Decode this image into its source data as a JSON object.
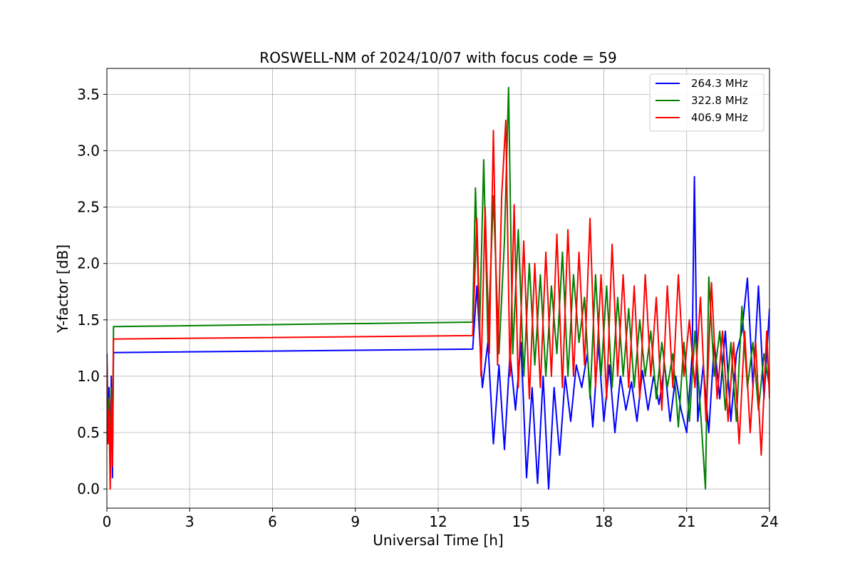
{
  "chart_data": {
    "type": "line",
    "title": "ROSWELL-NM of 2024/10/07 with focus code = 59",
    "xlabel": "Universal Time [h]",
    "ylabel": "Y-factor [dB]",
    "xlim": [
      0,
      24
    ],
    "ylim": [
      -0.17,
      3.73
    ],
    "xticks": [
      0,
      3,
      6,
      9,
      12,
      15,
      18,
      21,
      24
    ],
    "yticks": [
      0.0,
      0.5,
      1.0,
      1.5,
      2.0,
      2.5,
      3.0,
      3.5
    ],
    "xtick_labels": [
      "0",
      "3",
      "6",
      "9",
      "12",
      "15",
      "18",
      "21",
      "24"
    ],
    "ytick_labels": [
      "0.0",
      "0.5",
      "1.0",
      "1.5",
      "2.0",
      "2.5",
      "3.0",
      "3.5"
    ],
    "grid": true,
    "legend_position": "top-right",
    "series": [
      {
        "name": "264.3 MHz",
        "color": "#0000ff",
        "x": [
          0.0,
          0.04,
          0.08,
          0.12,
          0.16,
          0.2,
          0.24,
          13.25,
          13.4,
          13.6,
          13.8,
          14.0,
          14.2,
          14.4,
          14.6,
          14.8,
          15.0,
          15.2,
          15.4,
          15.6,
          15.8,
          16.0,
          16.2,
          16.4,
          16.6,
          16.8,
          17.0,
          17.2,
          17.4,
          17.6,
          17.8,
          18.0,
          18.2,
          18.4,
          18.6,
          18.8,
          19.0,
          19.2,
          19.4,
          19.6,
          19.8,
          20.0,
          20.2,
          20.4,
          20.6,
          20.8,
          21.0,
          21.2,
          21.28,
          21.4,
          21.6,
          21.8,
          22.0,
          22.2,
          22.4,
          22.6,
          22.8,
          23.0,
          23.2,
          23.4,
          23.6,
          23.8,
          24.0
        ],
        "values": [
          1.2,
          0.6,
          0.9,
          0.25,
          1.0,
          0.1,
          1.21,
          1.24,
          1.8,
          0.9,
          1.3,
          0.4,
          1.1,
          0.35,
          1.2,
          0.7,
          1.3,
          0.1,
          0.9,
          0.05,
          1.0,
          0.0,
          0.9,
          0.3,
          1.0,
          0.6,
          1.1,
          0.9,
          1.2,
          0.55,
          1.3,
          0.6,
          1.1,
          0.5,
          1.0,
          0.7,
          0.95,
          0.6,
          1.05,
          0.7,
          1.0,
          0.75,
          1.1,
          0.6,
          1.0,
          0.7,
          0.5,
          1.2,
          2.77,
          0.6,
          1.1,
          0.5,
          1.3,
          0.8,
          1.4,
          0.6,
          1.2,
          1.4,
          1.87,
          0.9,
          1.8,
          0.8,
          1.6
        ]
      },
      {
        "name": "322.8 MHz",
        "color": "#008000",
        "x": [
          0.0,
          0.04,
          0.08,
          0.12,
          0.16,
          0.2,
          0.24,
          13.25,
          13.35,
          13.5,
          13.65,
          13.8,
          14.0,
          14.2,
          14.4,
          14.55,
          14.7,
          14.9,
          15.1,
          15.3,
          15.5,
          15.7,
          15.9,
          16.1,
          16.3,
          16.5,
          16.7,
          16.9,
          17.1,
          17.3,
          17.5,
          17.7,
          17.9,
          18.1,
          18.3,
          18.5,
          18.7,
          18.9,
          19.1,
          19.3,
          19.5,
          19.7,
          19.9,
          20.1,
          20.3,
          20.5,
          20.7,
          20.9,
          21.1,
          21.3,
          21.5,
          21.68,
          21.8,
          22.0,
          22.2,
          22.4,
          22.6,
          22.8,
          23.0,
          23.2,
          23.4,
          23.6,
          23.8,
          24.0
        ],
        "values": [
          1.1,
          0.5,
          0.8,
          0.2,
          0.9,
          0.3,
          1.44,
          1.48,
          2.67,
          1.4,
          2.92,
          1.3,
          2.6,
          1.2,
          2.2,
          3.56,
          1.2,
          2.3,
          1.0,
          2.0,
          1.1,
          1.9,
          1.0,
          1.8,
          1.2,
          2.1,
          1.0,
          1.9,
          1.3,
          1.7,
          0.8,
          1.9,
          1.0,
          1.8,
          0.9,
          1.7,
          1.0,
          1.6,
          0.9,
          1.5,
          1.0,
          1.4,
          0.8,
          1.3,
          0.9,
          1.2,
          0.55,
          1.3,
          0.6,
          1.4,
          0.7,
          0.0,
          1.88,
          1.0,
          1.4,
          0.7,
          1.3,
          0.6,
          1.62,
          0.9,
          1.3,
          0.7,
          1.2,
          0.9
        ]
      },
      {
        "name": "406.9 MHz",
        "color": "#ff0000",
        "x": [
          0.0,
          0.04,
          0.08,
          0.12,
          0.16,
          0.2,
          0.24,
          13.25,
          13.4,
          13.55,
          13.7,
          13.85,
          14.0,
          14.15,
          14.3,
          14.45,
          14.6,
          14.75,
          14.9,
          15.1,
          15.3,
          15.5,
          15.7,
          15.9,
          16.1,
          16.3,
          16.5,
          16.7,
          16.9,
          17.1,
          17.3,
          17.5,
          17.7,
          17.9,
          18.1,
          18.3,
          18.5,
          18.7,
          18.9,
          19.1,
          19.3,
          19.5,
          19.7,
          19.9,
          20.1,
          20.3,
          20.5,
          20.7,
          20.9,
          21.1,
          21.3,
          21.5,
          21.7,
          21.9,
          22.1,
          22.3,
          22.5,
          22.7,
          22.9,
          23.1,
          23.3,
          23.5,
          23.7,
          23.9,
          24.0
        ],
        "values": [
          1.15,
          0.4,
          0.7,
          0.0,
          0.8,
          0.2,
          1.33,
          1.36,
          2.4,
          1.0,
          2.5,
          1.2,
          3.18,
          1.1,
          2.6,
          3.27,
          1.0,
          2.52,
          0.9,
          2.2,
          0.8,
          2.0,
          0.9,
          2.1,
          1.0,
          2.26,
          0.9,
          2.3,
          1.0,
          2.1,
          1.1,
          2.4,
          0.9,
          1.9,
          0.8,
          2.17,
          1.0,
          1.9,
          0.9,
          1.8,
          0.8,
          1.9,
          1.0,
          1.7,
          0.7,
          1.8,
          0.9,
          1.9,
          1.0,
          1.5,
          0.9,
          1.7,
          0.6,
          1.83,
          0.8,
          1.4,
          0.6,
          1.3,
          0.4,
          1.4,
          0.5,
          1.3,
          0.3,
          1.4,
          0.8
        ]
      }
    ]
  }
}
